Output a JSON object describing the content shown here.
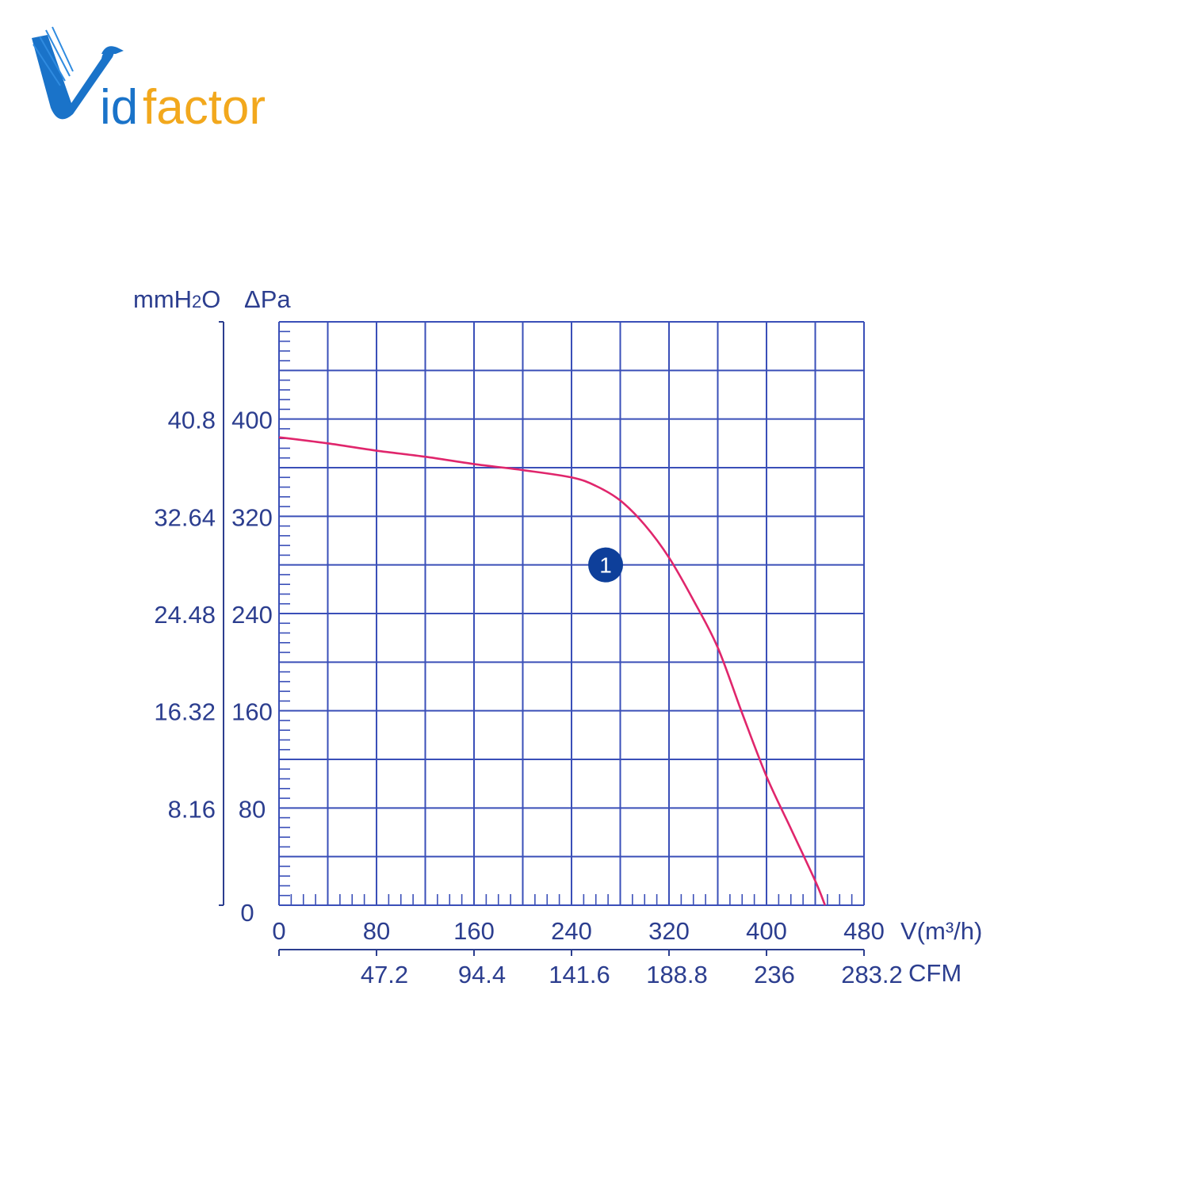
{
  "logo": {
    "text_v": "V",
    "text_id": "id",
    "text_factor": "factor",
    "colors": {
      "blue": "#1a73c9",
      "orange": "#f2a81d"
    }
  },
  "chart_data": {
    "type": "line",
    "xlabel": "V(m³/h)",
    "xlabel_secondary": "CFM",
    "ylabel_primary": "ΔPa",
    "ylabel_secondary": "mmH2O",
    "ylabel_secondary_parts": {
      "pre": "mmH",
      "sub": "2",
      "post": "O"
    },
    "xlim": [
      0,
      480
    ],
    "ylim": [
      0,
      480
    ],
    "x_ticks": [
      "0",
      "80",
      "160",
      "240",
      "320",
      "400",
      "480"
    ],
    "x_ticks_cfm": [
      "47.2",
      "94.4",
      "141.6",
      "188.8",
      "236",
      "283.2"
    ],
    "y_ticks_pa": [
      "0",
      "80",
      "160",
      "240",
      "320",
      "400"
    ],
    "y_ticks_mmh2o": [
      "8.16",
      "16.32",
      "24.48",
      "32.64",
      "40.8"
    ],
    "grid": true,
    "series": [
      {
        "marker_label": "1",
        "color": "#e0266c",
        "x": [
          0,
          40,
          80,
          120,
          160,
          200,
          240,
          260,
          280,
          300,
          320,
          340,
          360,
          380,
          400,
          420,
          440,
          448
        ],
        "y": [
          385,
          380,
          374,
          369,
          363,
          358,
          352,
          345,
          333,
          313,
          286,
          251,
          212,
          158,
          106,
          63,
          20,
          0
        ]
      }
    ],
    "marker": {
      "label": "1",
      "x": 268,
      "y": 280,
      "color": "#0e3f9a"
    }
  }
}
